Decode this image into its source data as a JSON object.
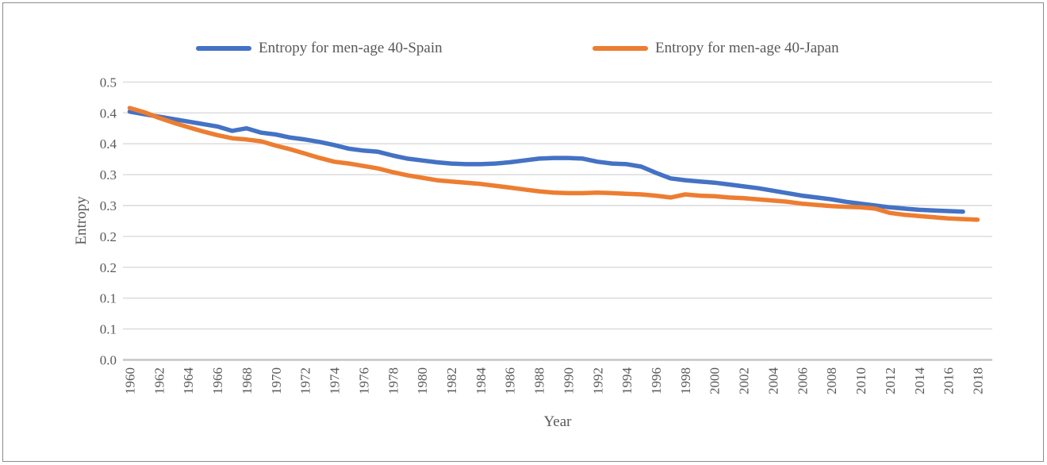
{
  "page": {
    "background": "#ffffff",
    "border_color": "#8c8c8c"
  },
  "chart_data": {
    "type": "line",
    "title": "",
    "xlabel": "Year",
    "ylabel": "Entropy",
    "grid": "horizontal-only",
    "legend_position": "top-center",
    "colors": {
      "gridline": "#d9d9d9",
      "axis_line": "#c6c6c6",
      "axis_text": "#595959",
      "spain": "#4472C4",
      "japan": "#ED7D31"
    },
    "x_tick_labels": [
      "1960",
      "1962",
      "1964",
      "1966",
      "1968",
      "1970",
      "1972",
      "1974",
      "1976",
      "1978",
      "1980",
      "1982",
      "1984",
      "1986",
      "1988",
      "1990",
      "1992",
      "1994",
      "1996",
      "1998",
      "2000",
      "2002",
      "2004",
      "2006",
      "2008",
      "2010",
      "2012",
      "2014",
      "2016",
      "2018"
    ],
    "y_axis": {
      "min": 0,
      "max": 0.45,
      "tick_values": [
        0.45,
        0.4,
        0.35,
        0.3,
        0.25,
        0.2,
        0.15,
        0.1,
        0.05,
        0.0
      ],
      "tick_labels": [
        "0.5",
        "0.4",
        "0.4",
        "0.3",
        "0.3",
        "0.2",
        "0.2",
        "0.1",
        "0.1",
        "0.0"
      ]
    },
    "series": [
      {
        "name": "Entropy for men-age 40-Spain",
        "color": "#4472C4",
        "start_year": 1960,
        "end_year": 2017,
        "values": [
          0.402,
          0.398,
          0.394,
          0.39,
          0.386,
          0.382,
          0.378,
          0.371,
          0.375,
          0.368,
          0.365,
          0.36,
          0.357,
          0.353,
          0.348,
          0.342,
          0.339,
          0.337,
          0.331,
          0.326,
          0.323,
          0.32,
          0.318,
          0.317,
          0.317,
          0.318,
          0.32,
          0.323,
          0.326,
          0.327,
          0.327,
          0.326,
          0.321,
          0.318,
          0.317,
          0.313,
          0.303,
          0.294,
          0.291,
          0.289,
          0.287,
          0.284,
          0.281,
          0.278,
          0.274,
          0.27,
          0.266,
          0.263,
          0.26,
          0.256,
          0.253,
          0.25,
          0.247,
          0.245,
          0.243,
          0.242,
          0.241,
          0.24
        ]
      },
      {
        "name": "Entropy for men-age 40-Japan",
        "color": "#ED7D31",
        "start_year": 1960,
        "end_year": 2018,
        "values": [
          0.408,
          0.401,
          0.392,
          0.384,
          0.377,
          0.37,
          0.364,
          0.359,
          0.357,
          0.354,
          0.347,
          0.341,
          0.334,
          0.327,
          0.321,
          0.318,
          0.314,
          0.31,
          0.304,
          0.299,
          0.295,
          0.291,
          0.289,
          0.287,
          0.285,
          0.282,
          0.279,
          0.276,
          0.273,
          0.271,
          0.27,
          0.27,
          0.271,
          0.27,
          0.269,
          0.268,
          0.266,
          0.263,
          0.268,
          0.266,
          0.265,
          0.263,
          0.262,
          0.26,
          0.258,
          0.256,
          0.253,
          0.251,
          0.249,
          0.248,
          0.247,
          0.245,
          0.238,
          0.235,
          0.233,
          0.231,
          0.229,
          0.228,
          0.227
        ]
      }
    ]
  }
}
